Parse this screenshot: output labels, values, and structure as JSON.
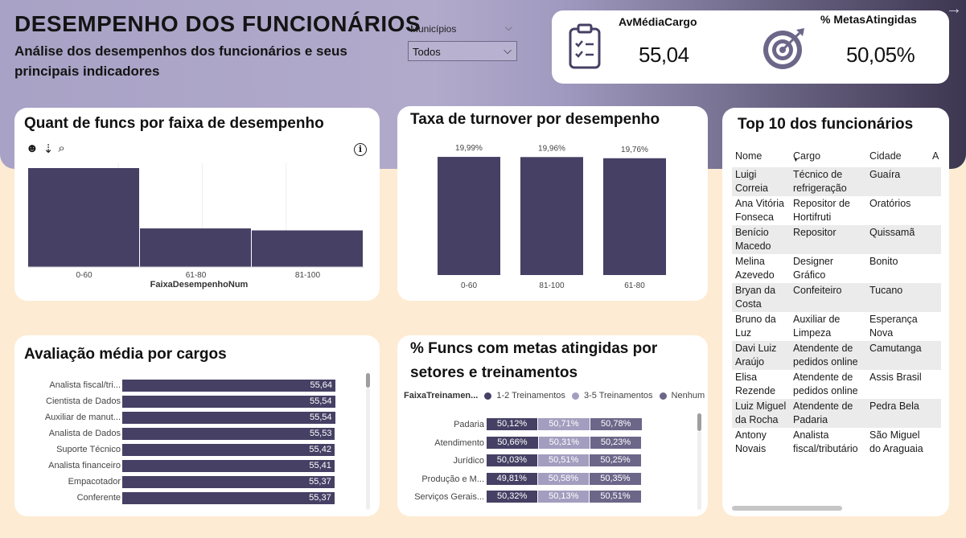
{
  "header": {
    "title": "DESEMPENHO DOS FUNCIONÁRIOS",
    "subtitle": "Análise dos desempenhos dos funcionários e seus principais indicadores"
  },
  "filter": {
    "label": "Municípios",
    "value": "Todos"
  },
  "kpis": [
    {
      "label": "AvMédiaCargo",
      "value": "55,04",
      "icon": "clipboard-icon"
    },
    {
      "label": "% MetasAtingidas",
      "value": "50,05%",
      "icon": "target-icon"
    }
  ],
  "colors": {
    "bar": "#454064",
    "seg1": "#454064",
    "seg2": "#a39dbf",
    "seg3": "#6c6689",
    "banner_start": "#a8a2c6",
    "banner_end": "#3c3650"
  },
  "hist": {
    "title": "Quant de funcs por faixa de desempenho",
    "xlabel": "FaixaDesempenhoNum"
  },
  "turnover": {
    "title": "Taxa de turnover por desempenho"
  },
  "avg_cargo": {
    "title": "Avaliação média por cargos"
  },
  "metas": {
    "title_line1": "% Funcs com metas atingidas por",
    "title_line2": "setores e treinamentos",
    "legend_title": "FaixaTreinamen...",
    "legend": [
      "1-2 Treinamentos",
      "3-5 Treinamentos",
      "Nenhum"
    ]
  },
  "top10": {
    "title": "Top 10 dos funcionários",
    "columns": [
      "Nome",
      "Cargo",
      "Cidade",
      "A"
    ],
    "rows": [
      [
        "Luigi Correia",
        "Técnico de refrigeração",
        "Guaíra"
      ],
      [
        "Ana Vitória Fonseca",
        "Repositor de Hortifruti",
        "Oratórios"
      ],
      [
        "Benício Macedo",
        "Repositor",
        "Quissamã"
      ],
      [
        "Melina Azevedo",
        "Designer Gráfico",
        "Bonito"
      ],
      [
        "Bryan da Costa",
        "Confeiteiro",
        "Tucano"
      ],
      [
        "Bruno da Luz",
        "Auxiliar de Limpeza",
        "Esperança Nova"
      ],
      [
        "Davi Luiz Araújo",
        "Atendente de pedidos online",
        "Camutanga"
      ],
      [
        "Elisa Rezende",
        "Atendente de pedidos online",
        "Assis Brasil"
      ],
      [
        "Luiz Miguel da Rocha",
        "Atendente de Padaria",
        "Pedra Bela"
      ],
      [
        "Antony Novais",
        "Analista fiscal/tributário",
        "São Miguel do Araguaia"
      ]
    ]
  },
  "chart_data": [
    {
      "type": "bar",
      "title": "Quant de funcs por faixa de desempenho",
      "xlabel": "FaixaDesempenhoNum",
      "categories": [
        "0-60",
        "61-80",
        "81-100"
      ],
      "values": [
        100,
        39,
        37
      ]
    },
    {
      "type": "bar",
      "title": "Taxa de turnover por desempenho",
      "categories": [
        "0-60",
        "81-100",
        "61-80"
      ],
      "values": [
        19.99,
        19.96,
        19.76
      ],
      "data_labels": [
        "19,99%",
        "19,96%",
        "19,76%"
      ]
    },
    {
      "type": "bar",
      "orientation": "horizontal",
      "title": "Avaliação média por cargos",
      "categories": [
        "Analista fiscal/tri...",
        "Cientista de Dados",
        "Auxiliar de manut...",
        "Analista de Dados",
        "Suporte Técnico",
        "Analista financeiro",
        "Empacotador",
        "Conferente"
      ],
      "values": [
        55.64,
        55.54,
        55.54,
        55.53,
        55.42,
        55.41,
        55.37,
        55.37
      ],
      "data_labels": [
        "55,64",
        "55,54",
        "55,54",
        "55,53",
        "55,42",
        "55,41",
        "55,37",
        "55,37"
      ]
    },
    {
      "type": "bar",
      "orientation": "horizontal",
      "stacked": true,
      "title": "% Funcs com metas atingidas por setores e treinamentos",
      "categories": [
        "Padaria",
        "Atendimento",
        "Jurídico",
        "Produção e M...",
        "Serviços Gerais..."
      ],
      "series": [
        {
          "name": "1-2 Treinamentos",
          "values": [
            50.12,
            50.66,
            50.03,
            49.81,
            50.32
          ],
          "labels": [
            "50,12%",
            "50,66%",
            "50,03%",
            "49,81%",
            "50,32%"
          ]
        },
        {
          "name": "3-5 Treinamentos",
          "values": [
            50.71,
            50.31,
            50.51,
            50.58,
            50.13
          ],
          "labels": [
            "50,71%",
            "50,31%",
            "50,51%",
            "50,58%",
            "50,13%"
          ]
        },
        {
          "name": "Nenhum",
          "values": [
            50.78,
            50.23,
            50.25,
            50.35,
            50.51
          ],
          "labels": [
            "50,78%",
            "50,23%",
            "50,25%",
            "50,35%",
            "50,51%"
          ]
        }
      ]
    }
  ]
}
